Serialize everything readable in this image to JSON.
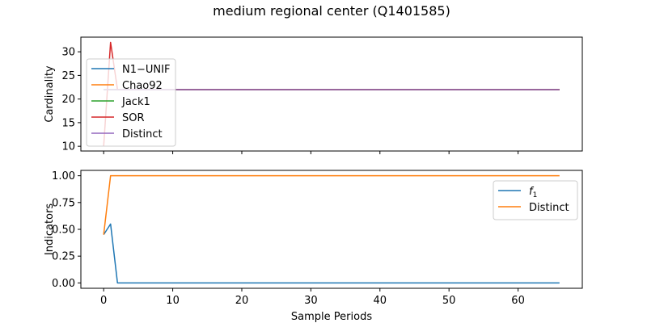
{
  "title": "medium regional center (Q1401585)",
  "xlabel": "Sample Periods",
  "chart_data": [
    {
      "type": "line",
      "ylabel": "Cardinality",
      "xlim": [
        -3.3,
        69.3
      ],
      "ylim": [
        9.0,
        33.1
      ],
      "xticks": [
        0,
        10,
        20,
        30,
        40,
        50,
        60
      ],
      "yticks": [
        10,
        15,
        20,
        25,
        30
      ],
      "show_xtick_labels": false,
      "legend_position": "upper-left",
      "series": [
        {
          "name": "N1−UNIF",
          "color": "#1f77b4",
          "points": [
            [
              0,
              22
            ],
            [
              66,
              22
            ]
          ]
        },
        {
          "name": "Chao92",
          "color": "#ff7f0e",
          "points": [
            [
              0,
              22
            ],
            [
              66,
              22
            ]
          ]
        },
        {
          "name": "Jack1",
          "color": "#2ca02c",
          "points": [
            [
              0,
              22
            ],
            [
              66,
              22
            ]
          ]
        },
        {
          "name": "SOR",
          "color": "#d62728",
          "points": [
            [
              0,
              10
            ],
            [
              1,
              32
            ],
            [
              2,
              22
            ],
            [
              66,
              22
            ]
          ]
        },
        {
          "name": "Distinct",
          "color": "#9467bd",
          "points": [
            [
              0,
              22
            ],
            [
              66,
              22
            ]
          ]
        }
      ]
    },
    {
      "type": "line",
      "ylabel": "Indicators",
      "xlim": [
        -3.3,
        69.3
      ],
      "ylim": [
        -0.05,
        1.05
      ],
      "xticks": [
        0,
        10,
        20,
        30,
        40,
        50,
        60
      ],
      "yticks": [
        0.0,
        0.25,
        0.5,
        0.75,
        1.0
      ],
      "ytick_labels": [
        "0.00",
        "0.25",
        "0.50",
        "0.75",
        "1.00"
      ],
      "show_xtick_labels": true,
      "legend_position": "upper-right",
      "series": [
        {
          "name": "f1",
          "color": "#1f77b4",
          "points": [
            [
              0,
              0.45
            ],
            [
              1,
              0.55
            ],
            [
              2,
              0.0
            ],
            [
              66,
              0.0
            ]
          ]
        },
        {
          "name": "Distinct",
          "color": "#ff7f0e",
          "points": [
            [
              0,
              0.45
            ],
            [
              1,
              1.0
            ],
            [
              66,
              1.0
            ]
          ]
        }
      ]
    }
  ]
}
